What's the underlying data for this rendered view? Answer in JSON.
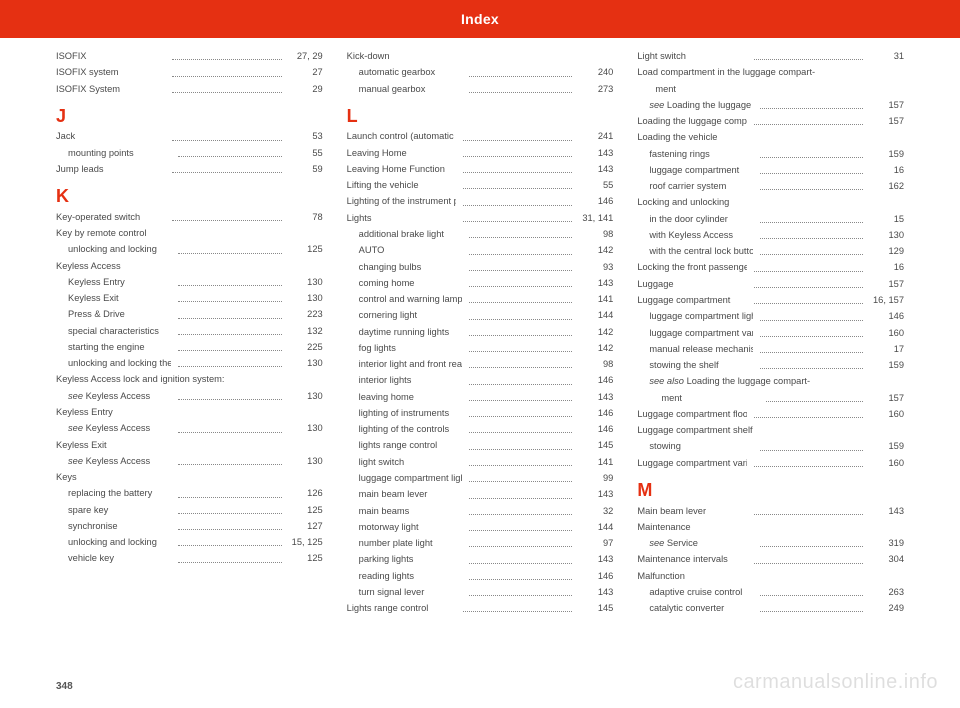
{
  "header": {
    "title": "Index"
  },
  "page_number": "348",
  "watermark": "carmanualsonline.info",
  "columns": [
    [
      {
        "t": "entry",
        "label": "ISOFIX",
        "page": "27, 29"
      },
      {
        "t": "entry",
        "label": "ISOFIX system",
        "page": "27"
      },
      {
        "t": "entry",
        "label": "ISOFIX System",
        "page": "29"
      },
      {
        "t": "letter",
        "label": "J"
      },
      {
        "t": "entry",
        "label": "Jack",
        "page": "53"
      },
      {
        "t": "sub",
        "label": "mounting points",
        "page": "55"
      },
      {
        "t": "entry",
        "label": "Jump leads",
        "page": "59"
      },
      {
        "t": "letter",
        "label": "K"
      },
      {
        "t": "entry",
        "label": "Key-operated switch",
        "page": "78"
      },
      {
        "t": "entry",
        "label": "Key by remote control",
        "page": ""
      },
      {
        "t": "sub",
        "label": "unlocking and locking",
        "page": "125"
      },
      {
        "t": "entry",
        "label": "Keyless Access",
        "page": ""
      },
      {
        "t": "sub",
        "label": "Keyless Entry",
        "page": "130"
      },
      {
        "t": "sub",
        "label": "Keyless Exit",
        "page": "130"
      },
      {
        "t": "sub",
        "label": "Press & Drive",
        "page": "223"
      },
      {
        "t": "sub",
        "label": "special characteristics",
        "page": "132"
      },
      {
        "t": "sub",
        "label": "starting the engine",
        "page": "225"
      },
      {
        "t": "sub",
        "label": "unlocking and locking the vehicle",
        "page": "130"
      },
      {
        "t": "entry",
        "label": "Keyless Access lock and ignition system:",
        "page": ""
      },
      {
        "t": "sub",
        "italic": true,
        "prefix": "see ",
        "label": "Keyless Access",
        "page": "130"
      },
      {
        "t": "entry",
        "label": "Keyless Entry",
        "page": ""
      },
      {
        "t": "sub",
        "italic": true,
        "prefix": "see ",
        "label": "Keyless Access",
        "page": "130"
      },
      {
        "t": "entry",
        "label": "Keyless Exit",
        "page": ""
      },
      {
        "t": "sub",
        "italic": true,
        "prefix": "see ",
        "label": "Keyless Access",
        "page": "130"
      },
      {
        "t": "entry",
        "label": "Keys",
        "page": ""
      },
      {
        "t": "sub",
        "label": "replacing the battery",
        "page": "126"
      },
      {
        "t": "sub",
        "label": "spare key",
        "page": "125"
      },
      {
        "t": "sub",
        "label": "synchronise",
        "page": "127"
      },
      {
        "t": "sub",
        "label": "unlocking and locking",
        "page": "15, 125"
      },
      {
        "t": "sub",
        "label": "vehicle key",
        "page": "125"
      }
    ],
    [
      {
        "t": "entry",
        "label": "Kick-down",
        "page": ""
      },
      {
        "t": "sub",
        "label": "automatic gearbox",
        "page": "240"
      },
      {
        "t": "sub",
        "label": "manual gearbox",
        "page": "273"
      },
      {
        "t": "letter",
        "label": "L"
      },
      {
        "t": "entry",
        "label": "Launch control (automatic gearbox)",
        "page": "241"
      },
      {
        "t": "entry",
        "label": "Leaving Home",
        "page": "143"
      },
      {
        "t": "entry",
        "label": "Leaving Home Function",
        "page": "143"
      },
      {
        "t": "entry",
        "label": "Lifting the vehicle",
        "page": "55"
      },
      {
        "t": "entry",
        "label": "Lighting of the instrument panel",
        "page": "146"
      },
      {
        "t": "entry",
        "label": "Lights",
        "page": "31, 141"
      },
      {
        "t": "sub",
        "label": "additional brake light",
        "page": "98"
      },
      {
        "t": "sub",
        "label": "AUTO",
        "page": "142"
      },
      {
        "t": "sub",
        "label": "changing bulbs",
        "page": "93"
      },
      {
        "t": "sub",
        "label": "coming home",
        "page": "143"
      },
      {
        "t": "sub",
        "label": "control and warning lamps",
        "page": "141"
      },
      {
        "t": "sub",
        "label": "cornering light",
        "page": "144"
      },
      {
        "t": "sub",
        "label": "daytime running lights",
        "page": "142"
      },
      {
        "t": "sub",
        "label": "fog lights",
        "page": "142"
      },
      {
        "t": "sub",
        "label": "interior light and front reading lights",
        "page": "98"
      },
      {
        "t": "sub",
        "label": "interior lights",
        "page": "146"
      },
      {
        "t": "sub",
        "label": "leaving home",
        "page": "143"
      },
      {
        "t": "sub",
        "label": "lighting of instruments",
        "page": "146"
      },
      {
        "t": "sub",
        "label": "lighting of the controls",
        "page": "146"
      },
      {
        "t": "sub",
        "label": "lights range control",
        "page": "145"
      },
      {
        "t": "sub",
        "label": "light switch",
        "page": "141"
      },
      {
        "t": "sub",
        "label": "luggage compartment light",
        "page": "99"
      },
      {
        "t": "sub",
        "label": "main beam lever",
        "page": "143"
      },
      {
        "t": "sub",
        "label": "main beams",
        "page": "32"
      },
      {
        "t": "sub",
        "label": "motorway light",
        "page": "144"
      },
      {
        "t": "sub",
        "label": "number plate light",
        "page": "97"
      },
      {
        "t": "sub",
        "label": "parking lights",
        "page": "143"
      },
      {
        "t": "sub",
        "label": "reading lights",
        "page": "146"
      },
      {
        "t": "sub",
        "label": "turn signal lever",
        "page": "143"
      },
      {
        "t": "entry",
        "label": "Lights range control",
        "page": "145"
      }
    ],
    [
      {
        "t": "entry",
        "label": "Light switch",
        "page": "31"
      },
      {
        "t": "entry",
        "label": "Load compartment in the luggage compart-",
        "page": ""
      },
      {
        "t": "cont",
        "label": "ment",
        "page": ""
      },
      {
        "t": "sub",
        "italic": true,
        "prefix": "see ",
        "label": "Loading the luggage compartment",
        "page": "157"
      },
      {
        "t": "entry",
        "label": "Loading the luggage compartment",
        "page": "157"
      },
      {
        "t": "entry",
        "label": "Loading the vehicle",
        "page": ""
      },
      {
        "t": "sub",
        "label": "fastening rings",
        "page": "159"
      },
      {
        "t": "sub",
        "label": "luggage compartment",
        "page": "16"
      },
      {
        "t": "sub",
        "label": "roof carrier system",
        "page": "162"
      },
      {
        "t": "entry",
        "label": "Locking and unlocking",
        "page": ""
      },
      {
        "t": "sub",
        "label": "in the door cylinder",
        "page": "15"
      },
      {
        "t": "sub",
        "label": "with Keyless Access",
        "page": "130"
      },
      {
        "t": "sub",
        "label": "with the central lock button",
        "page": "129"
      },
      {
        "t": "entry",
        "label": "Locking the front passenger door manually",
        "page": "16"
      },
      {
        "t": "entry",
        "label": "Luggage",
        "page": "157"
      },
      {
        "t": "entry",
        "label": "Luggage compartment",
        "page": "16, 157"
      },
      {
        "t": "sub",
        "label": "luggage compartment light",
        "page": "146"
      },
      {
        "t": "sub",
        "label": "luggage compartment variable floor",
        "page": "160"
      },
      {
        "t": "sub",
        "label": "manual release mechanism",
        "page": "17"
      },
      {
        "t": "sub",
        "label": "stowing the shelf",
        "page": "159"
      },
      {
        "t": "sub",
        "italic": true,
        "prefix": "see also ",
        "label": "Loading the luggage compart-",
        "page": ""
      },
      {
        "t": "subcont",
        "label": "ment",
        "page": "157"
      },
      {
        "t": "entry",
        "label": "Luggage compartment floor",
        "page": "160"
      },
      {
        "t": "entry",
        "label": "Luggage compartment shelf",
        "page": ""
      },
      {
        "t": "sub",
        "label": "stowing",
        "page": "159"
      },
      {
        "t": "entry",
        "label": "Luggage compartment variable floor",
        "page": "160"
      },
      {
        "t": "letter",
        "label": "M"
      },
      {
        "t": "entry",
        "label": "Main beam lever",
        "page": "143"
      },
      {
        "t": "entry",
        "label": "Maintenance",
        "page": ""
      },
      {
        "t": "sub",
        "italic": true,
        "prefix": "see ",
        "label": "Service",
        "page": "319"
      },
      {
        "t": "entry",
        "label": "Maintenance intervals",
        "page": "304"
      },
      {
        "t": "entry",
        "label": "Malfunction",
        "page": ""
      },
      {
        "t": "sub",
        "label": "adaptive cruise control",
        "page": "263"
      },
      {
        "t": "sub",
        "label": "catalytic converter",
        "page": "249"
      }
    ]
  ]
}
